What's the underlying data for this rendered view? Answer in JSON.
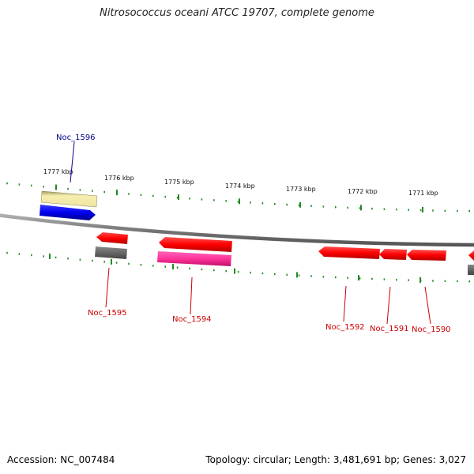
{
  "title": "Nitrosococcus oceani ATCC 19707, complete genome",
  "footer": {
    "accession": "Accession: NC_007484",
    "summary": "Topology: circular; Length: 3,481,691 bp; Genes: 3,027"
  },
  "ticks": [
    "1777 kbp",
    "1776 kbp",
    "1775 kbp",
    "1774 kbp",
    "1773 kbp",
    "1772 kbp",
    "1771 kbp"
  ],
  "genes": [
    {
      "label": "Noc_1596",
      "color": "#00008b"
    },
    {
      "label": "Noc_1595",
      "color": "#cc0000"
    },
    {
      "label": "Noc_1594",
      "color": "#cc0000"
    },
    {
      "label": "Noc_1592",
      "color": "#cc0000"
    },
    {
      "label": "Noc_1591",
      "color": "#cc0000"
    },
    {
      "label": "Noc_1590",
      "color": "#cc0000"
    }
  ],
  "colors": {
    "backbone": "#808080",
    "tick": "#228b22",
    "forward_gene": "#0000ee",
    "reverse_gene": "#ff0000",
    "pseudo_gene": "#f0e8a0",
    "rna_gene": "#ff3399",
    "other_gene": "#666666"
  }
}
